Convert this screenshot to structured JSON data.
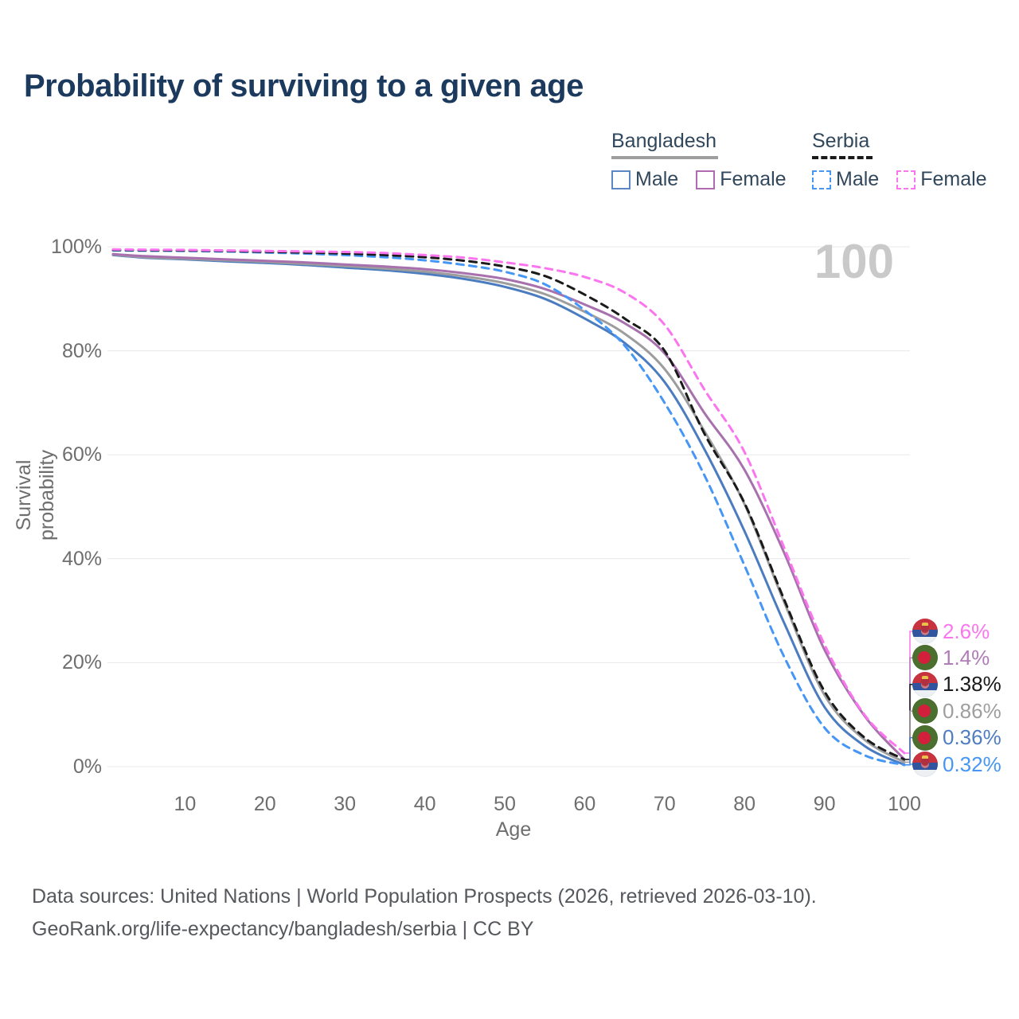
{
  "title": "Probability of surviving to a given age",
  "watermark": "100",
  "legend": {
    "groups": [
      {
        "name": "Bangladesh",
        "line_style": "solid",
        "underline_color": "#9e9e9e",
        "items": [
          {
            "label": "Male",
            "color": "#5b87c5",
            "dashed": false
          },
          {
            "label": "Female",
            "color": "#b06ab0",
            "dashed": false
          }
        ]
      },
      {
        "name": "Serbia",
        "line_style": "dashed",
        "underline_color": "#1a1a1a",
        "items": [
          {
            "label": "Male",
            "color": "#4596f5",
            "dashed": true
          },
          {
            "label": "Female",
            "color": "#fb76ee",
            "dashed": true
          }
        ]
      }
    ]
  },
  "chart_data": {
    "type": "line",
    "title": "Probability of surviving to a given age",
    "xlabel": "Age",
    "ylabel": "Survival probability",
    "xlim": [
      1,
      100
    ],
    "ylim": [
      0,
      100
    ],
    "grid": true,
    "x_ticks": [
      10,
      20,
      30,
      40,
      50,
      60,
      70,
      80,
      90,
      100
    ],
    "y_ticks": [
      {
        "value": 100,
        "label": "100%"
      },
      {
        "value": 80,
        "label": "80%"
      },
      {
        "value": 60,
        "label": "60%"
      },
      {
        "value": 40,
        "label": "40%"
      },
      {
        "value": 20,
        "label": "20%"
      },
      {
        "value": 0,
        "label": "0%"
      }
    ],
    "x": [
      1,
      5,
      10,
      15,
      20,
      25,
      30,
      35,
      40,
      45,
      50,
      55,
      60,
      65,
      70,
      75,
      80,
      85,
      90,
      95,
      100
    ],
    "series": [
      {
        "name": "Bangladesh Male",
        "country": "bangladesh",
        "sex": "male",
        "color": "#4b7cc0",
        "dashed": false,
        "values": [
          98.4,
          97.9,
          97.6,
          97.2,
          96.9,
          96.5,
          96.0,
          95.5,
          94.8,
          93.8,
          92.3,
          90.0,
          86.2,
          81.5,
          74.0,
          61.0,
          45.3,
          27.5,
          11.5,
          4.0,
          0.36
        ]
      },
      {
        "name": "Bangladesh Total",
        "country": "bangladesh",
        "sex": "total",
        "color": "#9d9d9d",
        "dashed": false,
        "values": [
          98.5,
          98.0,
          97.7,
          97.4,
          97.1,
          96.7,
          96.3,
          95.8,
          95.2,
          94.3,
          93.0,
          90.9,
          87.5,
          83.3,
          76.5,
          64.5,
          50.5,
          31.5,
          13.8,
          5.2,
          0.86
        ]
      },
      {
        "name": "Bangladesh Female",
        "country": "bangladesh",
        "sex": "female",
        "color": "#a871ae",
        "dashed": false,
        "values": [
          98.6,
          98.2,
          97.9,
          97.6,
          97.3,
          97.0,
          96.6,
          96.2,
          95.7,
          94.9,
          93.8,
          91.9,
          88.9,
          85.3,
          79.5,
          68.0,
          57.1,
          41.0,
          22.5,
          9.8,
          1.4
        ]
      },
      {
        "name": "Serbia Male",
        "country": "serbia",
        "sex": "male",
        "color": "#4596f5",
        "dashed": true,
        "values": [
          99.3,
          99.25,
          99.2,
          99.1,
          98.9,
          98.7,
          98.4,
          98.0,
          97.4,
          96.5,
          95.2,
          92.8,
          87.8,
          81.0,
          70.0,
          56.0,
          38.7,
          21.0,
          7.5,
          2.2,
          0.32
        ]
      },
      {
        "name": "Serbia Total",
        "country": "serbia",
        "sex": "total",
        "color": "#1a1a1a",
        "dashed": true,
        "values": [
          99.4,
          99.35,
          99.3,
          99.2,
          99.05,
          98.9,
          98.7,
          98.4,
          98.0,
          97.3,
          96.2,
          94.4,
          90.8,
          86.2,
          80.0,
          64.0,
          50.7,
          32.0,
          14.5,
          5.6,
          1.38
        ]
      },
      {
        "name": "Serbia Female",
        "country": "serbia",
        "sex": "female",
        "color": "#fb76ee",
        "dashed": true,
        "values": [
          99.5,
          99.45,
          99.4,
          99.3,
          99.2,
          99.1,
          99.0,
          98.8,
          98.4,
          97.9,
          97.0,
          95.9,
          94.2,
          91.2,
          85.0,
          72.5,
          60.5,
          42.0,
          23.5,
          10.0,
          2.6
        ]
      }
    ],
    "end_labels": [
      {
        "value": "2.6%",
        "series": "Serbia Female",
        "flag": "serbia",
        "color": "#fb76ee",
        "end": 2.6
      },
      {
        "value": "1.4%",
        "series": "Bangladesh Female",
        "flag": "bangladesh",
        "color": "#b07cb8",
        "end": 1.4
      },
      {
        "value": "1.38%",
        "series": "Serbia Total",
        "flag": "serbia",
        "color": "#1a1a1a",
        "end": 1.38
      },
      {
        "value": "0.86%",
        "series": "Bangladesh Total",
        "flag": "bangladesh",
        "color": "#9e9e9e",
        "end": 0.86
      },
      {
        "value": "0.36%",
        "series": "Bangladesh Male",
        "flag": "bangladesh",
        "color": "#4e7dc0",
        "end": 0.36
      },
      {
        "value": "0.32%",
        "series": "Serbia Male",
        "flag": "serbia",
        "color": "#4596f5",
        "end": 0.32
      }
    ]
  },
  "footer": {
    "line1": "Data sources: United Nations | World Population Prospects (2026, retrieved 2026-03-10).",
    "line2": "GeoRank.org/life-expectancy/bangladesh/serbia | CC BY"
  }
}
